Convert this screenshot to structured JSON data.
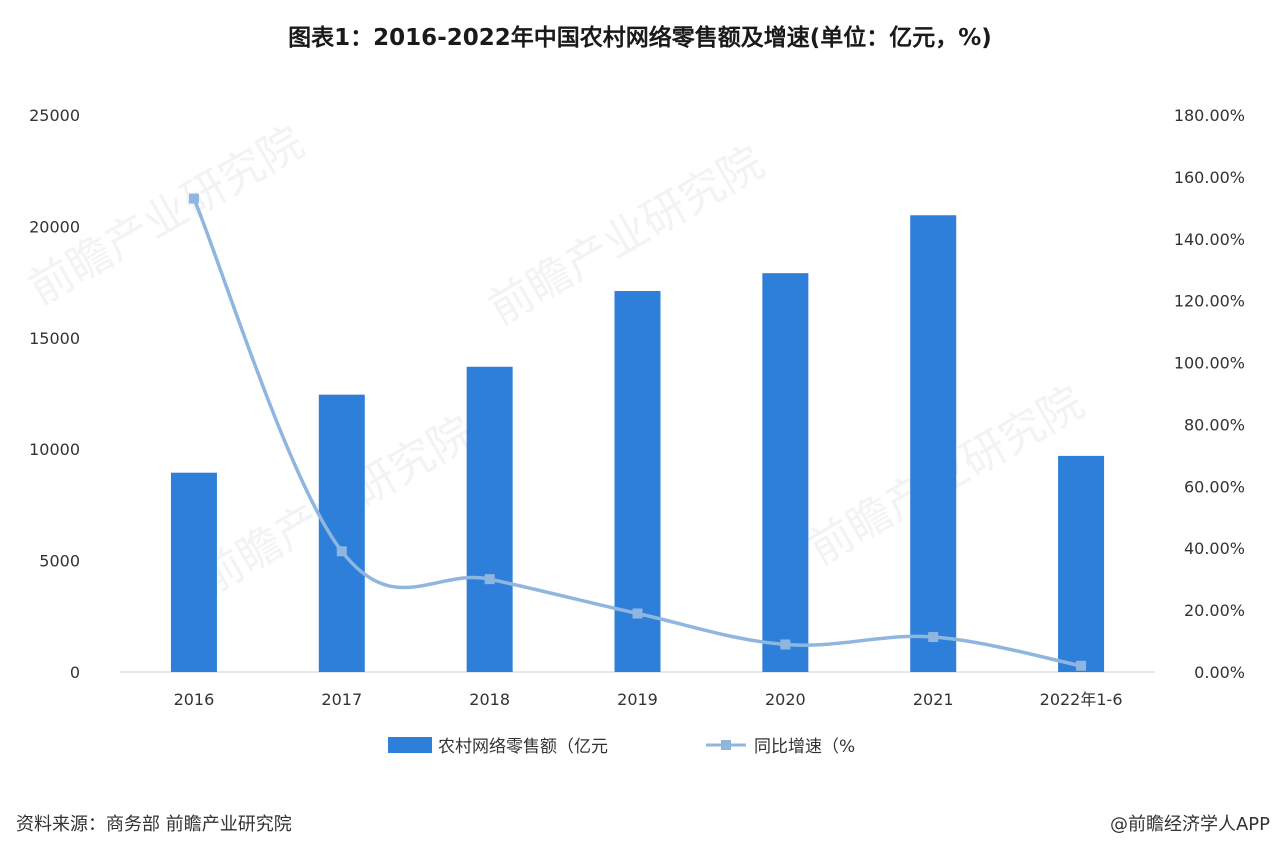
{
  "title": "图表1：2016-2022年中国农村网络零售额及增速(单位：亿元，%)",
  "chart_data": {
    "type": "bar",
    "categories": [
      "2016",
      "2017",
      "2018",
      "2019",
      "2020",
      "2021",
      "2022年1-6"
    ],
    "series": [
      {
        "name": "农村网络零售额（亿元",
        "type": "bar",
        "axis": "left",
        "color": "#2e7fd9",
        "values": [
          8945,
          12448,
          13700,
          17100,
          17900,
          20500,
          9700
        ]
      },
      {
        "name": "同比增速（%",
        "type": "line",
        "axis": "right",
        "color": "#8fb6df",
        "values": [
          153.0,
          39.0,
          30.0,
          18.9,
          8.9,
          11.3,
          2.0
        ]
      }
    ],
    "y_left": {
      "min": 0,
      "max": 25000,
      "ticks": [
        "0",
        "5000",
        "10000",
        "15000",
        "20000",
        "25000"
      ]
    },
    "y_right": {
      "min": 0,
      "max": 180,
      "ticks": [
        "0.00%",
        "20.00%",
        "40.00%",
        "60.00%",
        "80.00%",
        "100.00%",
        "120.00%",
        "140.00%",
        "160.00%",
        "180.00%"
      ]
    },
    "legend_position": "bottom"
  },
  "footer": {
    "source": "资料来源：商务部 前瞻产业研究院",
    "credit": "@前瞻经济学人APP"
  },
  "watermark_text": "前瞻产业研究院"
}
